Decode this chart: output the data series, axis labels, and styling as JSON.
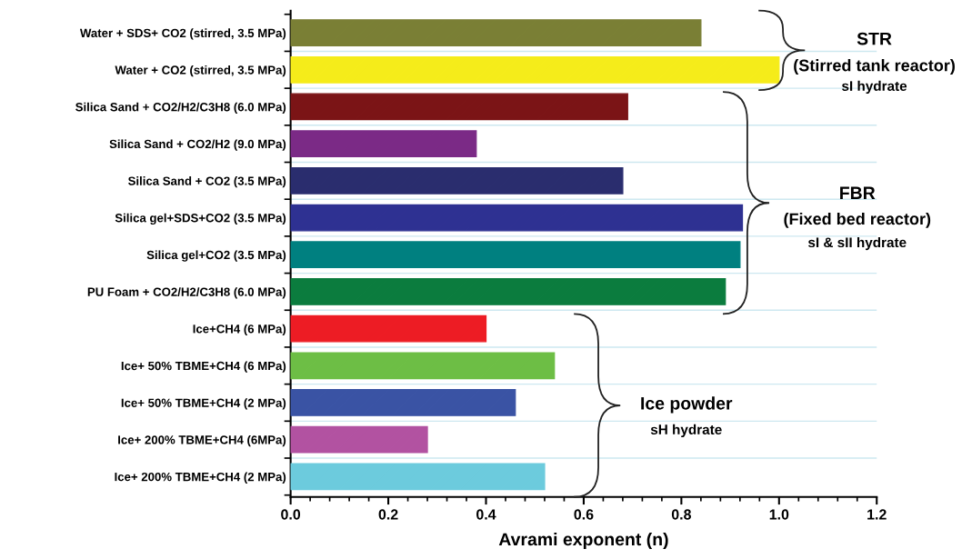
{
  "chart_data": {
    "type": "bar",
    "orientation": "horizontal",
    "xlabel": "Avrami exponent (n)",
    "categories": [
      "Water + SDS+ CO2 (stirred, 3.5 MPa)",
      "Water + CO2 (stirred, 3.5 MPa)",
      "Silica Sand + CO2/H2/C3H8 (6.0 MPa)",
      "Silica Sand + CO2/H2 (9.0 MPa)",
      "Silica Sand + CO2 (3.5 MPa)",
      "Silica gel+SDS+CO2 (3.5 MPa)",
      "Silica gel+CO2 (3.5 MPa)",
      "PU Foam + CO2/H2/C3H8 (6.0 MPa)",
      "Ice+CH4 (6 MPa)",
      "Ice+ 50% TBME+CH4 (6 MPa)",
      "Ice+ 50% TBME+CH4 (2 MPa)",
      "Ice+ 200% TBME+CH4 (6MPa)",
      "Ice+ 200% TBME+CH4 (2 MPa)"
    ],
    "values": [
      0.84,
      1.0,
      0.69,
      0.38,
      0.68,
      0.925,
      0.92,
      0.89,
      0.4,
      0.54,
      0.46,
      0.28,
      0.52
    ],
    "colors": [
      "#7a7f35",
      "#f5ec1a",
      "#7b1416",
      "#7b2a86",
      "#2a2d6e",
      "#2e3192",
      "#008080",
      "#0b7c3e",
      "#ed1c24",
      "#6dbe45",
      "#3a53a4",
      "#b252a1",
      "#6ccbdd"
    ],
    "xlim": [
      0,
      1.2
    ],
    "xticks": [
      {
        "value": 0,
        "label": "0.0"
      },
      0.2,
      0.4,
      0.6,
      0.8,
      {
        "value": 1,
        "label": "1.0"
      },
      1.2
    ],
    "grid": "y",
    "annotations": [
      "STR",
      "(Stirred tank reactor)",
      "sI hydrate",
      "FBR",
      "(Fixed bed reactor)",
      "sI & sII hydrate",
      "Ice powder",
      "sH hydrate"
    ]
  }
}
